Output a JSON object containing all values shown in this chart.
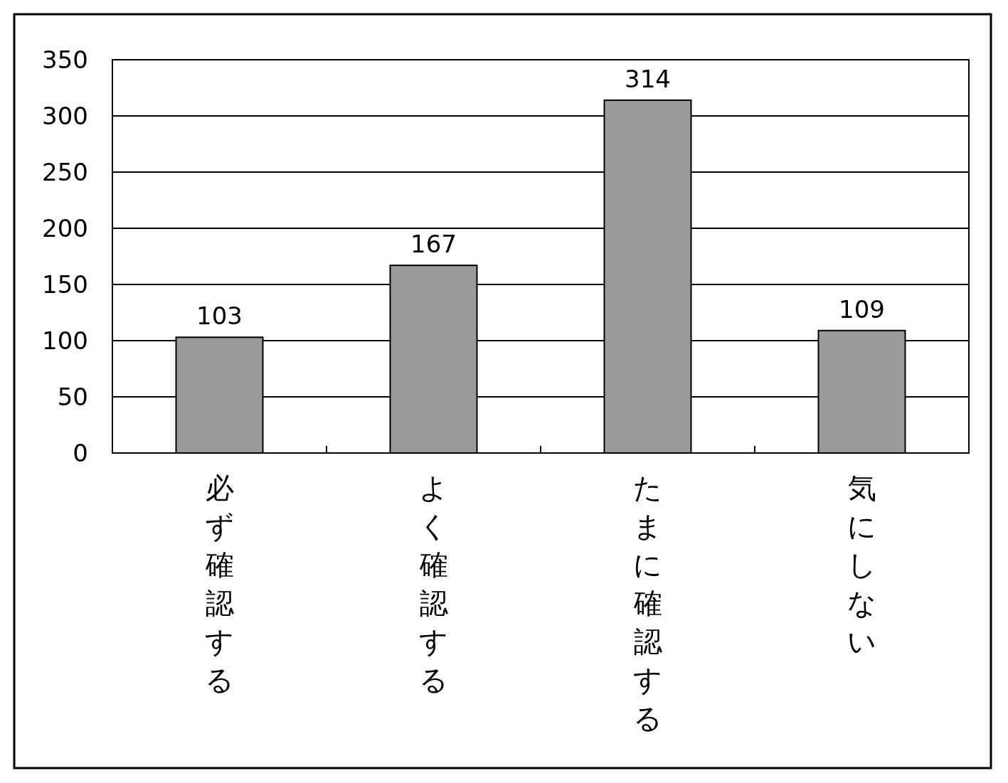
{
  "chart_data": {
    "type": "bar",
    "categories": [
      "必ず確認する",
      "よく確認する",
      "たまに確認する",
      "気にしない"
    ],
    "values": [
      103,
      167,
      314,
      109
    ],
    "color": "#9a9a9a",
    "ylim": [
      0,
      350
    ],
    "yticks": [
      0,
      50,
      100,
      150,
      200,
      250,
      300,
      350
    ],
    "grid": "y",
    "data_labels": true
  }
}
